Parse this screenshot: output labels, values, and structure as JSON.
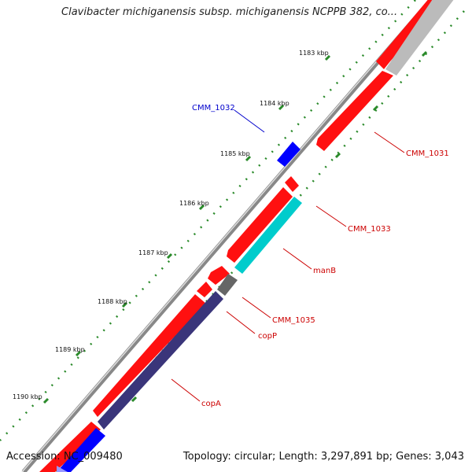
{
  "title": "Clavibacter michiganensis subsp. michiganensis NCPPB 382, co...",
  "footer": {
    "accession": "Accession: NC_009480",
    "summary": "Topology: circular; Length: 3,297,891 bp; Genes: 3,043"
  },
  "scale_labels": [
    "1183 kbp",
    "1184 kbp",
    "1185 kbp",
    "1186 kbp",
    "1187 kbp",
    "1188 kbp",
    "1189 kbp",
    "1190 kbp"
  ],
  "gene_labels": [
    {
      "text": "CMM_1032",
      "color": "#0000cc"
    },
    {
      "text": "CMM_1031",
      "color": "#cc0000"
    },
    {
      "text": "CMM_1033",
      "color": "#cc0000"
    },
    {
      "text": "manB",
      "color": "#cc0000"
    },
    {
      "text": "CMM_1035",
      "color": "#cc0000"
    },
    {
      "text": "copP",
      "color": "#cc0000"
    },
    {
      "text": "copA",
      "color": "#cc0000"
    }
  ],
  "colors": {
    "forward_gene": "#ff0000",
    "reverse_gene": "#0000ff",
    "manB": "#00cccc",
    "copA": "#3a357a",
    "grey_gene": "#666666",
    "backbone": "#888888",
    "tick": "#2a8a2a"
  }
}
